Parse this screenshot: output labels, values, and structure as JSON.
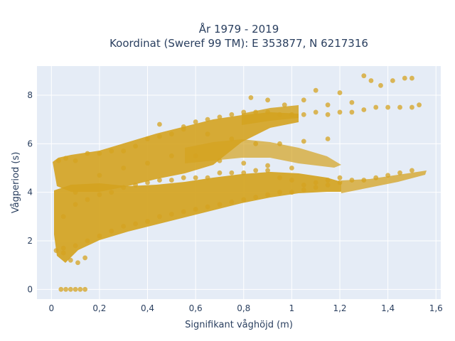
{
  "chart_data": {
    "type": "scatter",
    "title_line1": "År 1979 - 2019",
    "title_line2": "Koordinat (Sweref 99 TM): E 353877, N 6217316",
    "xlabel": "Signifikant våghöjd (m)",
    "ylabel": "Vågperiod (s)",
    "xlim": [
      -0.06,
      1.62
    ],
    "ylim": [
      -0.4,
      9.2
    ],
    "x_ticks": [
      0,
      0.2,
      0.4,
      0.6,
      0.8,
      1,
      1.2,
      1.4,
      1.6
    ],
    "x_tick_labels": [
      "0",
      "0,2",
      "0,4",
      "0,6",
      "0,8",
      "1",
      "1,2",
      "1,4",
      "1,6"
    ],
    "y_ticks": [
      0,
      2,
      4,
      6,
      8
    ],
    "y_tick_labels": [
      "0",
      "2",
      "4",
      "6",
      "8"
    ],
    "grid": true,
    "plot_bg": "#e5ecf6",
    "marker_color": "#d4a320",
    "series": [
      {
        "x": [
          0.04,
          0.06,
          0.08,
          0.1,
          0.12,
          0.14,
          0.02,
          0.05,
          0.08,
          0.11,
          0.14,
          0.03,
          0.06,
          0.1,
          0.15,
          0.2,
          0.25,
          0.3,
          0.35,
          0.4,
          0.45,
          0.5,
          0.55,
          0.6,
          0.65,
          0.7,
          0.75,
          0.8,
          0.85,
          0.9,
          0.95,
          1.0,
          1.05,
          1.1,
          1.15,
          1.2,
          1.25,
          1.3,
          1.35,
          1.4,
          1.45,
          1.5,
          1.53,
          0.05,
          0.1,
          0.15,
          0.2,
          0.25,
          0.3,
          0.35,
          0.4,
          0.45,
          0.5,
          0.55,
          0.6,
          0.65,
          0.7,
          0.75,
          0.8,
          0.85,
          0.9,
          0.95,
          1.0,
          1.05,
          1.1,
          1.15,
          1.2,
          1.25,
          1.3,
          1.35,
          1.4,
          1.45,
          1.5,
          0.05,
          0.1,
          0.15,
          0.2,
          0.25,
          0.3,
          0.35,
          0.4,
          0.45,
          0.5,
          0.55,
          0.6,
          0.65,
          0.7,
          0.75,
          0.8,
          0.85,
          0.9,
          0.95,
          1.0,
          1.05,
          1.1,
          1.15,
          1.2,
          0.1,
          0.2,
          0.3,
          0.4,
          0.5,
          0.6,
          0.7,
          0.8,
          0.9,
          1.0,
          0.45,
          0.55,
          0.65,
          0.75,
          0.85,
          0.95,
          1.05,
          1.15,
          0.83,
          0.9,
          0.97,
          1.05,
          1.1,
          1.15,
          1.2,
          1.25,
          1.3,
          1.33,
          1.37,
          1.42,
          1.47,
          1.5
        ],
        "y": [
          0,
          0,
          0,
          0,
          0,
          0,
          1.6,
          1.7,
          1.2,
          1.1,
          1.3,
          5.3,
          5.4,
          5.3,
          5.6,
          5.6,
          5.7,
          5.7,
          5.9,
          6.2,
          6.3,
          6.4,
          6.7,
          6.9,
          7.0,
          7.1,
          7.2,
          7.3,
          7.3,
          7.3,
          7.2,
          7.2,
          7.2,
          7.3,
          7.2,
          7.3,
          7.3,
          7.4,
          7.5,
          7.5,
          7.5,
          7.5,
          7.6,
          1.5,
          1.8,
          2.0,
          2.2,
          2.4,
          2.6,
          2.7,
          2.8,
          3.0,
          3.1,
          3.2,
          3.3,
          3.4,
          3.5,
          3.6,
          3.7,
          3.8,
          3.9,
          4.0,
          4.0,
          4.1,
          4.2,
          4.3,
          4.4,
          4.5,
          4.5,
          4.6,
          4.7,
          4.8,
          4.9,
          3.0,
          3.5,
          3.7,
          3.9,
          4.0,
          4.2,
          4.3,
          4.4,
          4.5,
          4.5,
          4.6,
          4.6,
          4.6,
          4.8,
          4.8,
          4.8,
          4.9,
          4.9,
          4.6,
          4.5,
          4.3,
          4.4,
          4.5,
          4.6,
          4.0,
          4.7,
          5.0,
          5.2,
          5.5,
          5.5,
          5.3,
          5.2,
          5.1,
          5.0,
          6.8,
          6.6,
          6.4,
          6.2,
          6.0,
          6.0,
          6.1,
          6.2,
          7.9,
          7.8,
          7.6,
          7.8,
          8.2,
          7.6,
          8.1,
          7.7,
          8.8,
          8.6,
          8.4,
          8.6,
          8.7,
          8.7
        ]
      }
    ]
  }
}
